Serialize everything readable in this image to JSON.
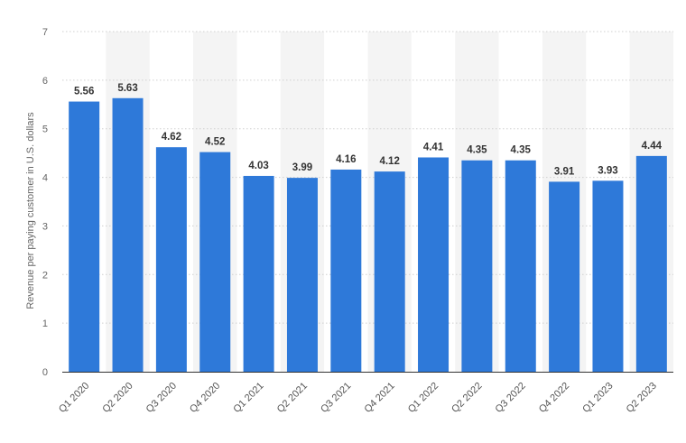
{
  "colors": {
    "bar": "#2e79d9",
    "band": "#f4f4f4",
    "grid": "#cfcfcf",
    "axis": "#333333",
    "text": "#666666"
  },
  "chart_data": {
    "type": "bar",
    "categories": [
      "Q1 2020",
      "Q2 2020",
      "Q3 2020",
      "Q4 2020",
      "Q1 2021",
      "Q2 2021",
      "Q3 2021",
      "Q4 2021",
      "Q1 2022",
      "Q2 2022",
      "Q3 2022",
      "Q4 2022",
      "Q1 2023",
      "Q2 2023"
    ],
    "values": [
      5.56,
      5.63,
      4.62,
      4.52,
      4.03,
      3.99,
      4.16,
      4.12,
      4.41,
      4.35,
      4.35,
      3.91,
      3.93,
      4.44
    ],
    "data_labels": [
      "5.56",
      "5.63",
      "4.62",
      "4.52",
      "4.03",
      "3.99",
      "4.16",
      "4.12",
      "4.41",
      "4.35",
      "4.35",
      "3.91",
      "3.93",
      "4.44"
    ],
    "title": "",
    "xlabel": "",
    "ylabel": "Revenue per paying customer in U.S. dollars",
    "ylim": [
      0,
      7
    ],
    "yticks": [
      "0",
      "1",
      "2",
      "3",
      "4",
      "5",
      "6",
      "7"
    ],
    "grid": true,
    "legend": "none"
  }
}
